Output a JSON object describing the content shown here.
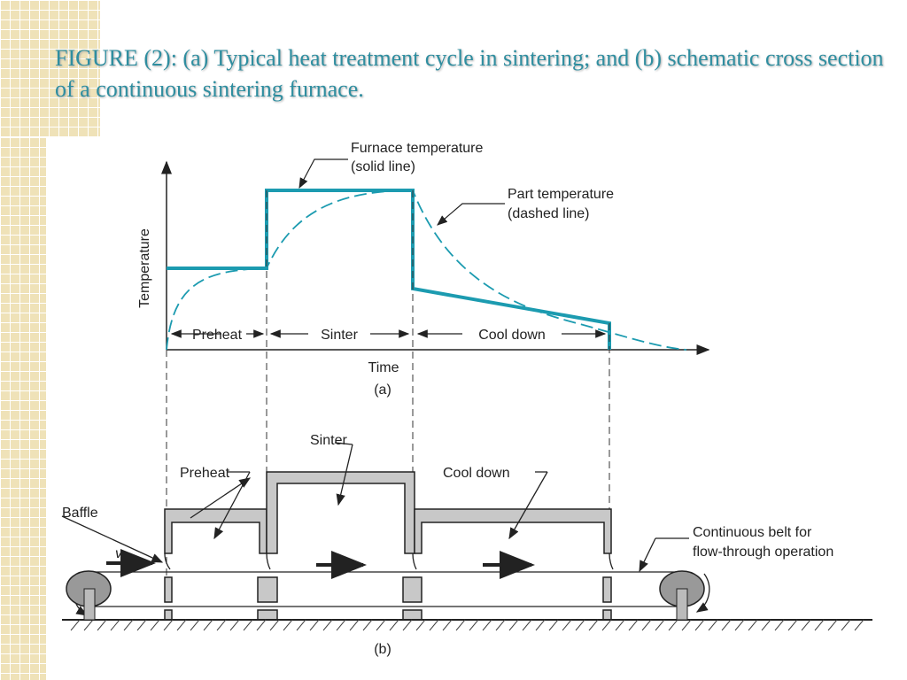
{
  "title": "FIGURE (2): (a) Typical heat treatment cycle in sintering; and (b) schematic cross section of a continuous sintering furnace.",
  "colors": {
    "accent": "#1c9bb0",
    "title": "#2f8ea0",
    "furnace": "#c8c8c8"
  },
  "a": {
    "ylabel": "Temperature",
    "xlabel": "Time",
    "panel": "(a)",
    "furnace_label1": "Furnace temperature",
    "furnace_label2": "(solid line)",
    "part_label1": "Part temperature",
    "part_label2": "(dashed line)",
    "preheat": "Preheat",
    "sinter": "Sinter",
    "cool": "Cool down"
  },
  "b": {
    "panel": "(b)",
    "baffle": "Baffle",
    "preheat": "Preheat",
    "sinter": "Sinter",
    "cool": "Cool down",
    "belt1": "Continuous belt for",
    "belt2": "flow-through operation",
    "v": "v"
  }
}
